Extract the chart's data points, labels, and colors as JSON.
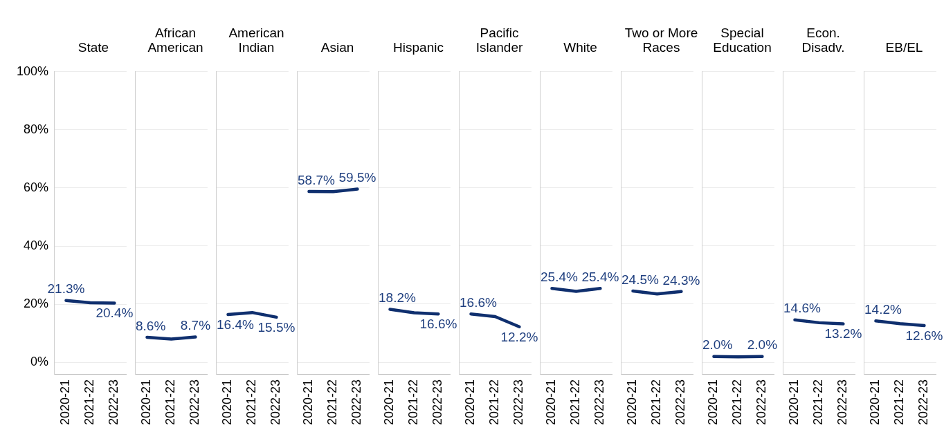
{
  "chart_data": [
    {
      "type": "line",
      "title": "State",
      "categories": [
        "2020-21",
        "2021-22",
        "2022-23"
      ],
      "values": [
        21.3,
        20.5,
        20.4
      ],
      "value_labels": [
        "21.3%",
        null,
        "20.4%"
      ],
      "color": "#0f2f6e",
      "ylim": [
        -4,
        100
      ],
      "yticks": [
        {
          "value": 0,
          "label": "0%"
        },
        {
          "value": 20,
          "label": "20%"
        },
        {
          "value": 40,
          "label": "40%"
        },
        {
          "value": 60,
          "label": "60%"
        },
        {
          "value": 80,
          "label": "80%"
        },
        {
          "value": 100,
          "label": "100%"
        }
      ],
      "grid": "y",
      "marker": "none"
    },
    {
      "type": "line",
      "title": "African American",
      "categories": [
        "2020-21",
        "2021-22",
        "2022-23"
      ],
      "values": [
        8.6,
        8.0,
        8.7
      ],
      "value_labels": [
        "8.6%",
        null,
        "8.7%"
      ],
      "color": "#0f2f6e",
      "ylim": [
        -4,
        100
      ],
      "yticks": [
        {
          "value": 0,
          "label": null
        },
        {
          "value": 20,
          "label": null
        },
        {
          "value": 40,
          "label": null
        },
        {
          "value": 60,
          "label": null
        },
        {
          "value": 80,
          "label": null
        },
        {
          "value": 100,
          "label": null
        }
      ],
      "grid": "y",
      "marker": "none",
      "tick_labels": "x"
    },
    {
      "type": "line",
      "title": "American Indian",
      "categories": [
        "2020-21",
        "2021-22",
        "2022-23"
      ],
      "values": [
        16.4,
        17.1,
        15.5
      ],
      "value_labels": [
        "16.4%",
        null,
        "15.5%"
      ],
      "color": "#0f2f6e",
      "ylim": [
        -4,
        100
      ],
      "yticks": [
        {
          "value": 0,
          "label": null
        },
        {
          "value": 20,
          "label": null
        },
        {
          "value": 40,
          "label": null
        },
        {
          "value": 60,
          "label": null
        },
        {
          "value": 80,
          "label": null
        },
        {
          "value": 100,
          "label": null
        }
      ],
      "grid": "y",
      "marker": "none",
      "tick_labels": "x"
    },
    {
      "type": "line",
      "title": "Asian",
      "categories": [
        "2020-21",
        "2021-22",
        "2022-23"
      ],
      "values": [
        58.7,
        58.6,
        59.5
      ],
      "value_labels": [
        "58.7%",
        null,
        "59.5%"
      ],
      "color": "#0f2f6e",
      "ylim": [
        -4,
        100
      ],
      "yticks": [
        {
          "value": 0,
          "label": null
        },
        {
          "value": 20,
          "label": null
        },
        {
          "value": 40,
          "label": null
        },
        {
          "value": 60,
          "label": null
        },
        {
          "value": 80,
          "label": null
        },
        {
          "value": 100,
          "label": null
        }
      ],
      "grid": "y",
      "marker": "none",
      "tick_labels": "x"
    },
    {
      "type": "line",
      "title": "Hispanic",
      "categories": [
        "2020-21",
        "2021-22",
        "2022-23"
      ],
      "values": [
        18.2,
        17.0,
        16.6
      ],
      "value_labels": [
        "18.2%",
        null,
        "16.6%"
      ],
      "color": "#0f2f6e",
      "ylim": [
        -4,
        100
      ],
      "yticks": [
        {
          "value": 0,
          "label": null
        },
        {
          "value": 20,
          "label": null
        },
        {
          "value": 40,
          "label": null
        },
        {
          "value": 60,
          "label": null
        },
        {
          "value": 80,
          "label": null
        },
        {
          "value": 100,
          "label": null
        }
      ],
      "grid": "y",
      "marker": "none",
      "tick_labels": "x"
    },
    {
      "type": "line",
      "title": "Pacific Islander",
      "categories": [
        "2020-21",
        "2021-22",
        "2022-23"
      ],
      "values": [
        16.6,
        15.7,
        12.2
      ],
      "value_labels": [
        "16.6%",
        null,
        "12.2%"
      ],
      "color": "#0f2f6e",
      "ylim": [
        -4,
        100
      ],
      "yticks": [
        {
          "value": 0,
          "label": null
        },
        {
          "value": 20,
          "label": null
        },
        {
          "value": 40,
          "label": null
        },
        {
          "value": 60,
          "label": null
        },
        {
          "value": 80,
          "label": null
        },
        {
          "value": 100,
          "label": null
        }
      ],
      "grid": "y",
      "marker": "none",
      "tick_labels": "x"
    },
    {
      "type": "line",
      "title": "White",
      "categories": [
        "2020-21",
        "2021-22",
        "2022-23"
      ],
      "values": [
        25.4,
        24.4,
        25.4
      ],
      "value_labels": [
        "25.4%",
        null,
        "25.4%"
      ],
      "color": "#0f2f6e",
      "ylim": [
        -4,
        100
      ],
      "yticks": [
        {
          "value": 0,
          "label": null
        },
        {
          "value": 20,
          "label": null
        },
        {
          "value": 40,
          "label": null
        },
        {
          "value": 60,
          "label": null
        },
        {
          "value": 80,
          "label": null
        },
        {
          "value": 100,
          "label": null
        }
      ],
      "grid": "y",
      "marker": "none",
      "tick_labels": "x"
    },
    {
      "type": "line",
      "title": "Two or More Races",
      "categories": [
        "2020-21",
        "2021-22",
        "2022-23"
      ],
      "values": [
        24.5,
        23.5,
        24.3
      ],
      "value_labels": [
        "24.5%",
        null,
        "24.3%"
      ],
      "color": "#0f2f6e",
      "ylim": [
        -4,
        100
      ],
      "yticks": [
        {
          "value": 0,
          "label": null
        },
        {
          "value": 20,
          "label": null
        },
        {
          "value": 40,
          "label": null
        },
        {
          "value": 60,
          "label": null
        },
        {
          "value": 80,
          "label": null
        },
        {
          "value": 100,
          "label": null
        }
      ],
      "grid": "y",
      "marker": "none",
      "tick_labels": "x"
    },
    {
      "type": "line",
      "title": "Special Education",
      "categories": [
        "2020-21",
        "2021-22",
        "2022-23"
      ],
      "values": [
        2.0,
        1.9,
        2.0
      ],
      "value_labels": [
        "2.0%",
        null,
        "2.0%"
      ],
      "color": "#0f2f6e",
      "ylim": [
        -4,
        100
      ],
      "yticks": [
        {
          "value": 0,
          "label": null
        },
        {
          "value": 20,
          "label": null
        },
        {
          "value": 40,
          "label": null
        },
        {
          "value": 60,
          "label": null
        },
        {
          "value": 80,
          "label": null
        },
        {
          "value": 100,
          "label": null
        }
      ],
      "grid": "y",
      "marker": "none",
      "tick_labels": "x"
    },
    {
      "type": "line",
      "title": "Econ. Disadv.",
      "categories": [
        "2020-21",
        "2021-22",
        "2022-23"
      ],
      "values": [
        14.6,
        13.6,
        13.2
      ],
      "value_labels": [
        "14.6%",
        null,
        "13.2%"
      ],
      "color": "#0f2f6e",
      "ylim": [
        -4,
        100
      ],
      "yticks": [
        {
          "value": 0,
          "label": null
        },
        {
          "value": 20,
          "label": null
        },
        {
          "value": 40,
          "label": null
        },
        {
          "value": 60,
          "label": null
        },
        {
          "value": 80,
          "label": null
        },
        {
          "value": 100,
          "label": null
        }
      ],
      "grid": "y",
      "marker": "none",
      "tick_labels": "x"
    },
    {
      "type": "line",
      "title": "EB/EL",
      "categories": [
        "2020-21",
        "2021-22",
        "2022-23"
      ],
      "values": [
        14.2,
        13.3,
        12.6
      ],
      "value_labels": [
        "14.2%",
        null,
        "12.6%"
      ],
      "color": "#0f2f6e",
      "ylim": [
        -4,
        100
      ],
      "yticks": [
        {
          "value": 0,
          "label": null
        },
        {
          "value": 20,
          "label": null
        },
        {
          "value": 40,
          "label": null
        },
        {
          "value": 60,
          "label": null
        },
        {
          "value": 80,
          "label": null
        },
        {
          "value": 100,
          "label": null
        }
      ],
      "grid": "y",
      "marker": "none",
      "tick_labels": "x"
    }
  ]
}
